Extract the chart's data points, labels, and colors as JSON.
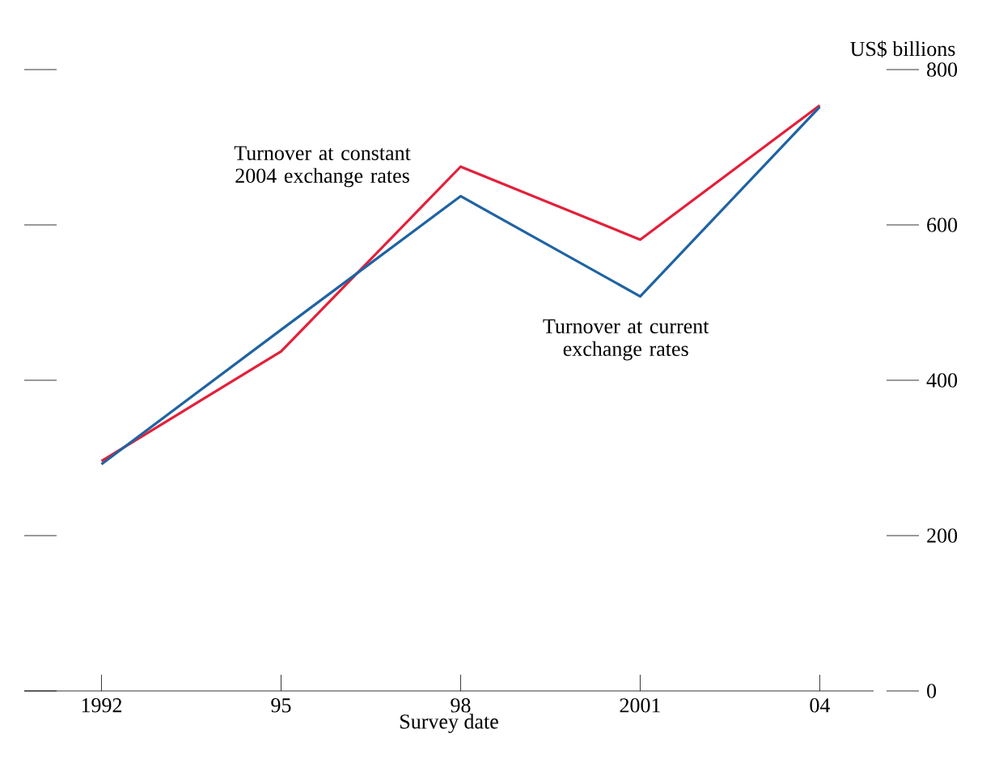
{
  "chart_data": {
    "type": "line",
    "xlabel": "Survey date",
    "ylabel": "US$ billions",
    "categories": [
      "1992",
      "95",
      "98",
      "2001",
      "04"
    ],
    "ylim": [
      0,
      800
    ],
    "yticks": [
      0,
      200,
      400,
      600,
      800
    ],
    "grid": false,
    "legend": false,
    "marker": "none",
    "line_style": "solid",
    "series": [
      {
        "name": "Turnover at constant 2004 exchange rates",
        "color": "#e3203a",
        "values": [
          296,
          437,
          675,
          581,
          754
        ]
      },
      {
        "name": "Turnover at current exchange rates",
        "color": "#1f63a3",
        "values": [
          292,
          465,
          637,
          508,
          752
        ]
      }
    ]
  }
}
